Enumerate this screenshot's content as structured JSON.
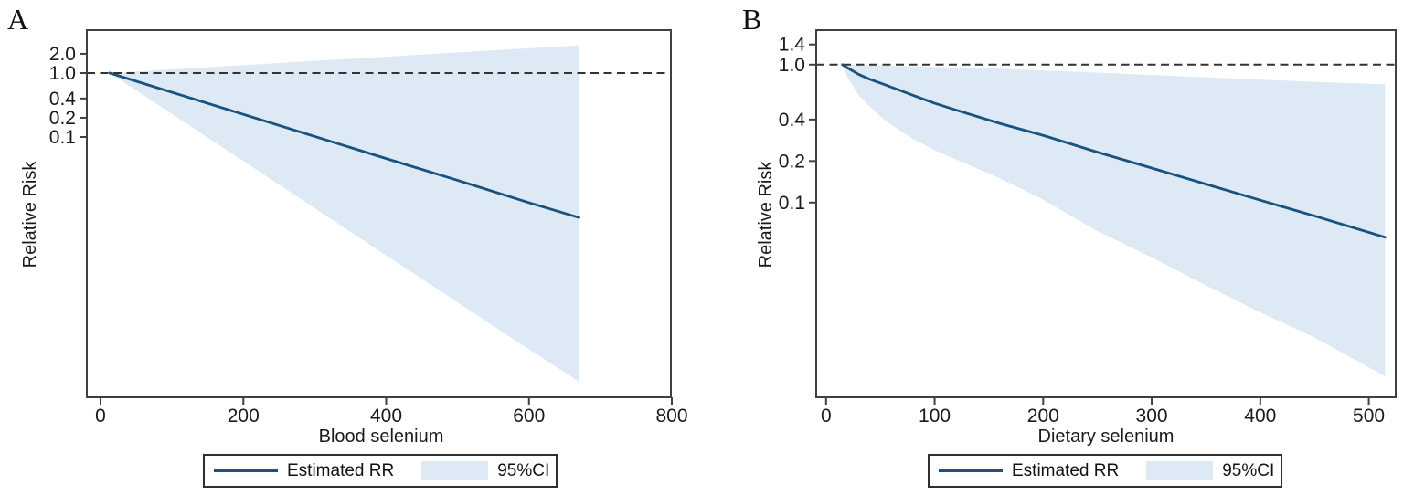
{
  "figure": {
    "panels": [
      {
        "letter": "A",
        "y_axis_title": "Relative Risk",
        "x_axis_title": "Blood selenium"
      },
      {
        "letter": "B",
        "y_axis_title": "Relative Risk",
        "x_axis_title": "Dietary selenium"
      }
    ],
    "legend": {
      "series_label": "Estimated RR",
      "band_label": "95%CI"
    }
  },
  "colors": {
    "line": "#1a527e",
    "band": "#ddeaf6",
    "dashed_line": "#333333",
    "frame": "#404040",
    "text": "#1a1a1a"
  },
  "chart_data": [
    {
      "type": "line",
      "panel": "A",
      "title": "",
      "xlabel": "Blood selenium",
      "ylabel": "Relative Risk",
      "y_scale": "log",
      "grid": false,
      "legend_position": "bottom",
      "x_ticks": [
        0,
        200,
        400,
        600,
        800
      ],
      "y_ticks": [
        2.0,
        1.0,
        0.4,
        0.2,
        0.1
      ],
      "xlim": [
        -19.2,
        798.7
      ],
      "ylim": [
        8.5e-06,
        4.69
      ],
      "reference_line": 1.0,
      "series": [
        {
          "name": "Estimated RR",
          "role": "line",
          "points": [
            [
              13,
              1.0
            ],
            [
              100,
              0.5
            ],
            [
              200,
              0.226
            ],
            [
              300,
              0.102
            ],
            [
              400,
              0.046
            ],
            [
              500,
              0.021
            ],
            [
              600,
              0.0094
            ],
            [
              670,
              0.0055
            ]
          ]
        },
        {
          "name": "95%CI upper",
          "role": "band-upper",
          "points": [
            [
              13,
              1.0
            ],
            [
              100,
              1.14
            ],
            [
              200,
              1.33
            ],
            [
              300,
              1.55
            ],
            [
              400,
              1.8
            ],
            [
              500,
              2.1
            ],
            [
              600,
              2.44
            ],
            [
              670,
              2.7
            ]
          ]
        },
        {
          "name": "95%CI lower",
          "role": "band-lower",
          "points": [
            [
              13,
              1.0
            ],
            [
              100,
              0.229
            ],
            [
              200,
              0.042
            ],
            [
              300,
              0.0077
            ],
            [
              400,
              0.0014
            ],
            [
              500,
              0.00026
            ],
            [
              600,
              4.75e-05
            ],
            [
              670,
              1.5e-05
            ]
          ]
        }
      ]
    },
    {
      "type": "line",
      "panel": "B",
      "title": "",
      "xlabel": "Dietary selenium",
      "ylabel": "Relative Risk",
      "y_scale": "log",
      "grid": false,
      "legend_position": "bottom",
      "x_ticks": [
        0,
        100,
        200,
        300,
        400,
        500
      ],
      "y_ticks": [
        1.4,
        1.0,
        0.4,
        0.2,
        0.1
      ],
      "xlim": [
        -9.1,
        524.8
      ],
      "ylim": [
        0.00387,
        1.78
      ],
      "reference_line": 1.0,
      "series": [
        {
          "name": "Estimated RR",
          "role": "line",
          "points": [
            [
              15,
              1.0
            ],
            [
              20,
              0.945
            ],
            [
              30,
              0.85
            ],
            [
              40,
              0.785
            ],
            [
              50,
              0.735
            ],
            [
              65,
              0.665
            ],
            [
              80,
              0.6
            ],
            [
              100,
              0.525
            ],
            [
              120,
              0.468
            ],
            [
              160,
              0.375
            ],
            [
              200,
              0.307
            ],
            [
              250,
              0.232
            ],
            [
              300,
              0.178
            ],
            [
              350,
              0.136
            ],
            [
              400,
              0.104
            ],
            [
              450,
              0.08
            ],
            [
              515,
              0.056
            ]
          ]
        },
        {
          "name": "95%CI upper",
          "role": "band-upper",
          "points": [
            [
              15,
              1.0
            ],
            [
              50,
              0.985
            ],
            [
              80,
              0.97
            ],
            [
              120,
              0.955
            ],
            [
              160,
              0.935
            ],
            [
              250,
              0.875
            ],
            [
              350,
              0.81
            ],
            [
              450,
              0.75
            ],
            [
              515,
              0.72
            ]
          ]
        },
        {
          "name": "95%CI lower",
          "role": "band-lower",
          "points": [
            [
              15,
              1.0
            ],
            [
              20,
              0.8
            ],
            [
              30,
              0.6
            ],
            [
              40,
              0.5
            ],
            [
              50,
              0.42
            ],
            [
              65,
              0.345
            ],
            [
              80,
              0.29
            ],
            [
              100,
              0.24
            ],
            [
              120,
              0.205
            ],
            [
              160,
              0.15
            ],
            [
              200,
              0.105
            ],
            [
              250,
              0.062
            ],
            [
              300,
              0.04
            ],
            [
              350,
              0.025
            ],
            [
              400,
              0.016
            ],
            [
              450,
              0.0105
            ],
            [
              515,
              0.0055
            ]
          ]
        }
      ]
    }
  ]
}
